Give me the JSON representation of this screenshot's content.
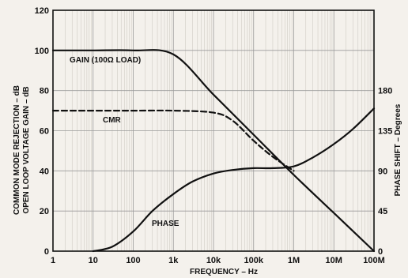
{
  "chart_data": {
    "type": "line",
    "x_axis": {
      "label": "FREQUENCY – Hz",
      "scale": "log",
      "range": [
        1,
        100000000
      ],
      "ticks": [
        1,
        10,
        100,
        1000,
        10000,
        100000,
        1000000,
        10000000,
        100000000
      ],
      "tick_labels": [
        "1",
        "10",
        "100",
        "1k",
        "10k",
        "100k",
        "1M",
        "10M",
        "100M"
      ]
    },
    "y_left": {
      "label_line1": "COMMON MODE REJECTION – dB",
      "label_line2": "OPEN LOOP VOLTAGE GAIN – dB",
      "range": [
        0,
        120
      ],
      "ticks": [
        0,
        20,
        40,
        60,
        80,
        100,
        120
      ],
      "tick_labels": [
        "0",
        "20",
        "40",
        "60",
        "80",
        "100",
        "120"
      ]
    },
    "y_right": {
      "label": "PHASE SHIFT – Degrees",
      "range": [
        0,
        270
      ],
      "ticks": [
        0,
        45,
        90,
        135,
        180
      ],
      "tick_labels": [
        "0",
        "45",
        "90",
        "135",
        "180"
      ]
    },
    "grid": true,
    "series": [
      {
        "name": "GAIN (100Ω LOAD)",
        "axis": "left",
        "style": "solid",
        "x": [
          1,
          10,
          100,
          1000,
          10000,
          100000,
          1000000,
          10000000,
          100000000
        ],
        "y": [
          100,
          100,
          100,
          98,
          78,
          58,
          38,
          19,
          0
        ]
      },
      {
        "name": "CMR",
        "axis": "left",
        "style": "dashed",
        "x": [
          1,
          10,
          100,
          1000,
          10000,
          30000,
          100000,
          300000,
          1000000
        ],
        "y": [
          70,
          70,
          70,
          70,
          69,
          65,
          55,
          47,
          40
        ]
      },
      {
        "name": "PHASE",
        "axis": "right",
        "style": "solid",
        "x": [
          10,
          30,
          100,
          300,
          1000,
          3000,
          10000,
          30000,
          100000,
          300000,
          1000000,
          3000000,
          10000000,
          30000000,
          100000000
        ],
        "y": [
          0,
          5,
          22,
          45,
          64,
          78,
          87,
          91,
          93,
          93,
          95,
          105,
          120,
          137,
          160
        ]
      }
    ]
  }
}
